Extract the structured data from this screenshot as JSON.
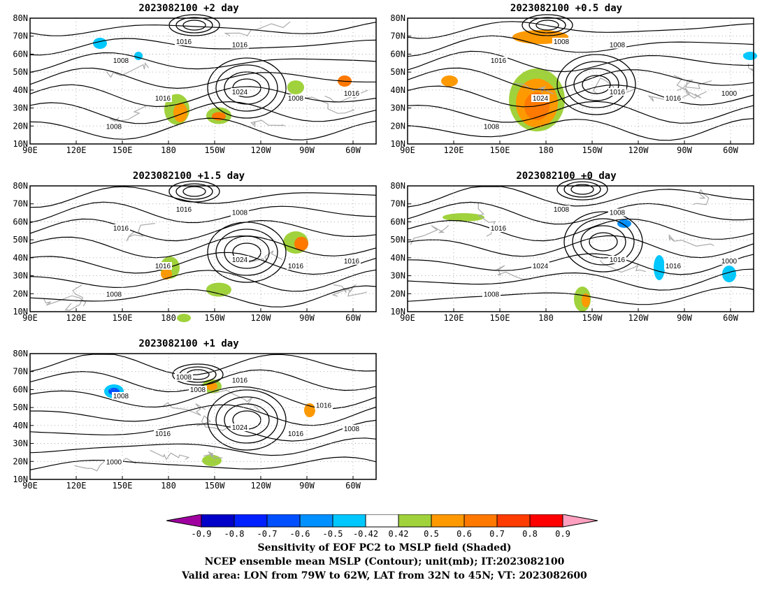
{
  "panels": [
    {
      "title": "2023082100 +2 day",
      "col": 0,
      "row": 0,
      "labels": [
        "1016",
        "1016",
        "1008",
        "1024",
        "1016",
        "1008",
        "1016",
        "1008"
      ]
    },
    {
      "title": "2023082100 +0.5 day",
      "col": 1,
      "row": 0,
      "labels": [
        "1008",
        "1008",
        "1016",
        "1016",
        "1024",
        "1016",
        "1000",
        "1008"
      ]
    },
    {
      "title": "2023082100 +1.5 day",
      "col": 0,
      "row": 1,
      "labels": [
        "1016",
        "1008",
        "1016",
        "1024",
        "1016",
        "1016",
        "1016",
        "1008"
      ]
    },
    {
      "title": "2023082100 +0 day",
      "col": 1,
      "row": 1,
      "labels": [
        "1008",
        "1008",
        "1016",
        "1016",
        "1024",
        "1016",
        "1000",
        "1008"
      ]
    },
    {
      "title": "2023082100 +1 day",
      "col": 0,
      "row": 2,
      "labels": [
        "1008",
        "1016",
        "1008",
        "1024",
        "1016",
        "1016",
        "1008",
        "1000",
        "1008",
        "1016"
      ]
    }
  ],
  "lat_labels": [
    "80N",
    "70N",
    "60N",
    "50N",
    "40N",
    "30N",
    "20N",
    "10N"
  ],
  "lon_labels": [
    "90E",
    "120E",
    "150E",
    "180",
    "150W",
    "120W",
    "90W",
    "60W"
  ],
  "colorbar": {
    "ticks": [
      "-0.9",
      "-0.8",
      "-0.7",
      "-0.6",
      "-0.5",
      "-0.42",
      "0.42",
      "0.5",
      "0.6",
      "0.7",
      "0.8",
      "0.9"
    ],
    "colors": [
      "#a000a0",
      "#0000c8",
      "#0020ff",
      "#0050ff",
      "#0090ff",
      "#00c8ff",
      "#ffffff",
      "#a0d23c",
      "#ff9900",
      "#ff7800",
      "#ff3c00",
      "#ff0000",
      "#ffa0c0"
    ]
  },
  "captions": {
    "line1": "Sensitivity of EOF PC2 to MSLP field (Shaded)",
    "line2": "NCEP ensemble mean MSLP (Contour); unit(mb); IT:2023082100",
    "line3": "Valid area: LON from 79W to 62W, LAT from 32N to 45N; VT: 2023082600"
  }
}
